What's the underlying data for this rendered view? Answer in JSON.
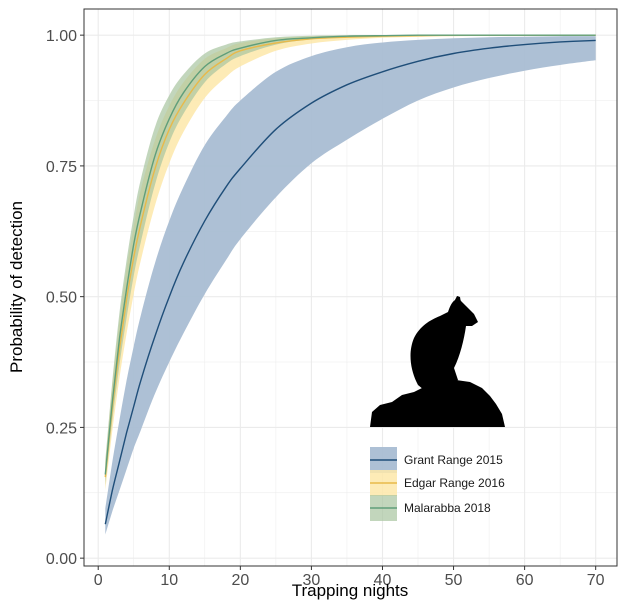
{
  "chart_data": {
    "type": "line",
    "xlabel": "Trapping nights",
    "ylabel": "Probability of detection",
    "xlim": [
      -2,
      73
    ],
    "ylim": [
      -0.015,
      1.05
    ],
    "x_ticks": [
      0,
      10,
      20,
      30,
      40,
      50,
      60,
      70
    ],
    "y_ticks": [
      0.0,
      0.25,
      0.5,
      0.75,
      1.0
    ],
    "y_tick_labels": [
      "0.00",
      "0.25",
      "0.50",
      "0.75",
      "1.00"
    ],
    "x_tick_labels": [
      "0",
      "10",
      "20",
      "30",
      "40",
      "50",
      "60",
      "70"
    ],
    "grid": true,
    "legend_position": "bottom-right",
    "x": [
      1,
      2,
      3,
      4,
      5,
      6,
      8,
      10,
      12,
      15,
      18,
      20,
      25,
      30,
      35,
      40,
      45,
      50,
      55,
      60,
      65,
      70
    ],
    "series": [
      {
        "name": "Grant Range 2015",
        "color": "#1f4e79",
        "fill": "#a9bdd3",
        "values": [
          0.065,
          0.13,
          0.185,
          0.24,
          0.29,
          0.34,
          0.425,
          0.5,
          0.565,
          0.645,
          0.71,
          0.745,
          0.82,
          0.87,
          0.905,
          0.93,
          0.95,
          0.965,
          0.975,
          0.982,
          0.987,
          0.99
        ],
        "lower": [
          0.045,
          0.09,
          0.13,
          0.17,
          0.21,
          0.245,
          0.315,
          0.375,
          0.43,
          0.505,
          0.57,
          0.61,
          0.69,
          0.755,
          0.8,
          0.84,
          0.875,
          0.9,
          0.918,
          0.932,
          0.943,
          0.952
        ],
        "upper": [
          0.095,
          0.185,
          0.265,
          0.34,
          0.405,
          0.465,
          0.565,
          0.645,
          0.71,
          0.79,
          0.845,
          0.875,
          0.93,
          0.96,
          0.977,
          0.986,
          0.991,
          0.994,
          0.996,
          0.997,
          0.998,
          0.998
        ]
      },
      {
        "name": "Edgar Range 2016",
        "color": "#e8b94a",
        "fill": "#fde7a9",
        "values": [
          0.155,
          0.29,
          0.4,
          0.495,
          0.575,
          0.64,
          0.745,
          0.82,
          0.87,
          0.925,
          0.955,
          0.97,
          0.985,
          0.993,
          0.996,
          0.998,
          0.999,
          1.0,
          1.0,
          1.0,
          1.0,
          1.0
        ],
        "lower": [
          0.13,
          0.245,
          0.345,
          0.43,
          0.505,
          0.57,
          0.675,
          0.755,
          0.815,
          0.88,
          0.92,
          0.94,
          0.97,
          0.984,
          0.991,
          0.995,
          0.997,
          0.998,
          0.999,
          0.999,
          1.0,
          1.0
        ],
        "upper": [
          0.18,
          0.335,
          0.455,
          0.555,
          0.635,
          0.705,
          0.8,
          0.865,
          0.91,
          0.955,
          0.975,
          0.985,
          0.994,
          0.998,
          0.999,
          1.0,
          1.0,
          1.0,
          1.0,
          1.0,
          1.0,
          1.0
        ]
      },
      {
        "name": "Malarabba 2018",
        "color": "#5f9e7a",
        "fill": "#a8c4a0",
        "values": [
          0.16,
          0.3,
          0.42,
          0.515,
          0.6,
          0.665,
          0.77,
          0.84,
          0.89,
          0.94,
          0.965,
          0.975,
          0.99,
          0.995,
          0.998,
          0.999,
          1.0,
          1.0,
          1.0,
          1.0,
          1.0,
          1.0
        ],
        "lower": [
          0.14,
          0.265,
          0.37,
          0.46,
          0.54,
          0.605,
          0.715,
          0.795,
          0.85,
          0.91,
          0.945,
          0.96,
          0.982,
          0.992,
          0.996,
          0.998,
          0.999,
          1.0,
          1.0,
          1.0,
          1.0,
          1.0
        ],
        "upper": [
          0.185,
          0.34,
          0.47,
          0.57,
          0.655,
          0.725,
          0.825,
          0.885,
          0.925,
          0.965,
          0.982,
          0.988,
          0.996,
          0.999,
          1.0,
          1.0,
          1.0,
          1.0,
          1.0,
          1.0,
          1.0,
          1.0
        ]
      }
    ]
  },
  "colors": {
    "panel_border": "#333333",
    "grid": "#ebebeb",
    "silhouette": "#000000"
  },
  "icons": {
    "silhouette": "rock-wallaby-silhouette-icon"
  }
}
